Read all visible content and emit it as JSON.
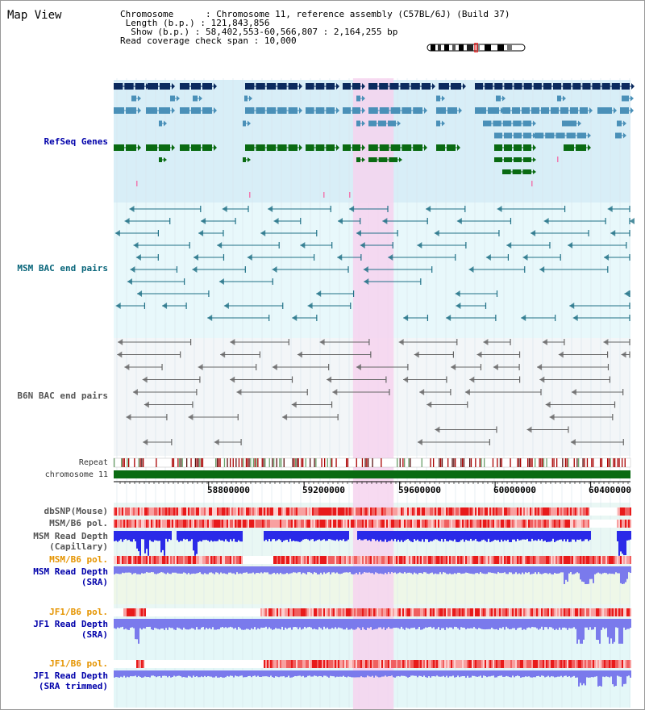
{
  "window_title": "Map View",
  "info": {
    "chromosome_label": "Chromosome",
    "chromosome_value": "Chromosome 11, reference assembly (C57BL/6J) (Build 37)",
    "length_label": "Length (b.p.)",
    "length_value": "121,843,856",
    "show_label": "Show (b.p.)",
    "show_value": "58,402,553-60,566,807 : 2,164,255 bp",
    "coverage_label": "Read coverage check span",
    "coverage_value": "10,000"
  },
  "view": {
    "start": 58402553,
    "end": 60566807,
    "highlight_start": 59405000,
    "highlight_end": 59575000
  },
  "colors": {
    "refseq_bg": "#d8eef7",
    "msm_bg": "#e8f8fb",
    "b6n_bg": "#f3f6f8",
    "highlight": "#f6d4ee",
    "dark_navy": "#0b2a5e",
    "mid_blue": "#4a90b8",
    "gene_green": "#0a6b12",
    "bac_teal": "#1f7086",
    "bac_grey": "#666666",
    "chrom_green": "#0a6b12",
    "depth_blue": "#2a2ae8",
    "depth_light": "#7a7aec"
  },
  "tracks": {
    "refseq": "RefSeq Genes",
    "msm_bac": "MSM BAC end pairs",
    "b6n_bac": "B6N BAC end pairs",
    "repeat": "Repeat",
    "chromosome": "chromosome 11",
    "dbsnp": "dbSNP(Mouse)",
    "msm_b6_pol_1": "MSM/B6 pol.",
    "msm_depth_cap_1": "MSM Read Depth",
    "msm_depth_cap_2": "(Capillary)",
    "msm_b6_pol_2": "MSM/B6 pol.",
    "msm_depth_sra_1": "MSM Read Depth",
    "msm_depth_sra_2": "(SRA)",
    "jf1_b6_pol_1": "JF1/B6 pol.",
    "jf1_depth_sra_1": "JF1 Read Depth",
    "jf1_depth_sra_2": "(SRA)",
    "jf1_b6_pol_2": "JF1/B6 pol.",
    "jf1_depth_trim_1": "JF1 Read Depth",
    "jf1_depth_trim_2": "(SRA trimmed)"
  },
  "axis_ticks": [
    "58800000",
    "59200000",
    "59600000",
    "60000000",
    "60400000"
  ]
}
